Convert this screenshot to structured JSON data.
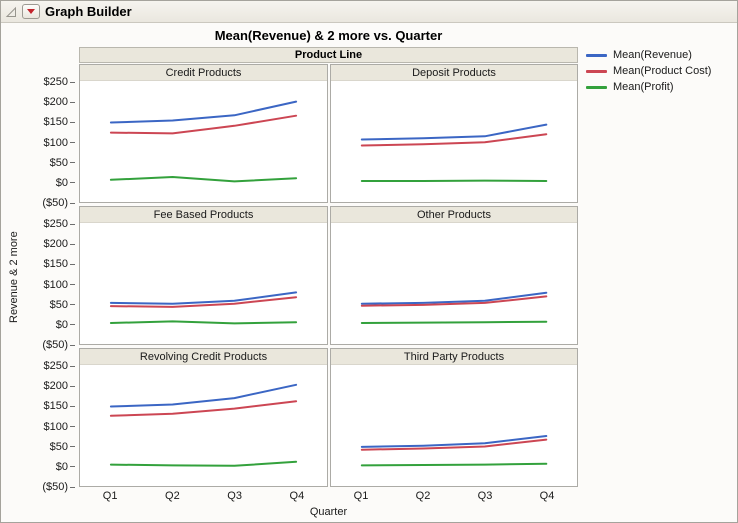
{
  "window": {
    "title": "Graph Builder"
  },
  "chart": {
    "title": "Mean(Revenue) & 2 more vs. Quarter",
    "group_header": "Product Line",
    "y_axis_label": "Revenue & 2 more",
    "x_axis_label": "Quarter"
  },
  "legend": {
    "items": [
      {
        "label": "Mean(Revenue)",
        "color": "#3B66C4"
      },
      {
        "label": "Mean(Product Cost)",
        "color": "#CC4653"
      },
      {
        "label": "Mean(Profit)",
        "color": "#33A13C"
      }
    ]
  },
  "chart_data": {
    "type": "line",
    "x": [
      "Q1",
      "Q2",
      "Q3",
      "Q4"
    ],
    "ylim": [
      -50,
      250
    ],
    "grid": false,
    "legend_position": "right",
    "yticks": [
      {
        "value": 250,
        "label": "$250"
      },
      {
        "value": 200,
        "label": "$200"
      },
      {
        "value": 150,
        "label": "$150"
      },
      {
        "value": 100,
        "label": "$100"
      },
      {
        "value": 50,
        "label": "$50"
      },
      {
        "value": 0,
        "label": "$0"
      },
      {
        "value": -50,
        "label": "($50)"
      }
    ],
    "panels": [
      {
        "title": "Credit Products",
        "series": [
          {
            "name": "Mean(Revenue)",
            "values": [
              147,
              152,
              165,
              199
            ]
          },
          {
            "name": "Mean(Product Cost)",
            "values": [
              122,
              120,
              139,
              164
            ]
          },
          {
            "name": "Mean(Profit)",
            "values": [
              5,
              12,
              1,
              9
            ]
          }
        ]
      },
      {
        "title": "Deposit Products",
        "series": [
          {
            "name": "Mean(Revenue)",
            "values": [
              105,
              108,
              113,
              142
            ]
          },
          {
            "name": "Mean(Product Cost)",
            "values": [
              90,
              93,
              98,
              118
            ]
          },
          {
            "name": "Mean(Profit)",
            "values": [
              2,
              2,
              3,
              2
            ]
          }
        ]
      },
      {
        "title": "Fee Based Products",
        "series": [
          {
            "name": "Mean(Revenue)",
            "values": [
              52,
              50,
              57,
              78
            ]
          },
          {
            "name": "Mean(Product Cost)",
            "values": [
              44,
              42,
              50,
              66
            ]
          },
          {
            "name": "Mean(Profit)",
            "values": [
              2,
              6,
              1,
              4
            ]
          }
        ]
      },
      {
        "title": "Other Products",
        "series": [
          {
            "name": "Mean(Revenue)",
            "values": [
              50,
              52,
              57,
              77
            ]
          },
          {
            "name": "Mean(Product Cost)",
            "values": [
              45,
              47,
              52,
              68
            ]
          },
          {
            "name": "Mean(Profit)",
            "values": [
              2,
              3,
              4,
              5
            ]
          }
        ]
      },
      {
        "title": "Revolving Credit Products",
        "series": [
          {
            "name": "Mean(Revenue)",
            "values": [
              147,
              152,
              168,
              201
            ]
          },
          {
            "name": "Mean(Product Cost)",
            "values": [
              124,
              129,
              142,
              160
            ]
          },
          {
            "name": "Mean(Profit)",
            "values": [
              3,
              1,
              0,
              10
            ]
          }
        ]
      },
      {
        "title": "Third Party Products",
        "series": [
          {
            "name": "Mean(Revenue)",
            "values": [
              47,
              50,
              56,
              74
            ]
          },
          {
            "name": "Mean(Product Cost)",
            "values": [
              40,
              43,
              48,
              65
            ]
          },
          {
            "name": "Mean(Profit)",
            "values": [
              1,
              2,
              3,
              5
            ]
          }
        ]
      }
    ]
  }
}
